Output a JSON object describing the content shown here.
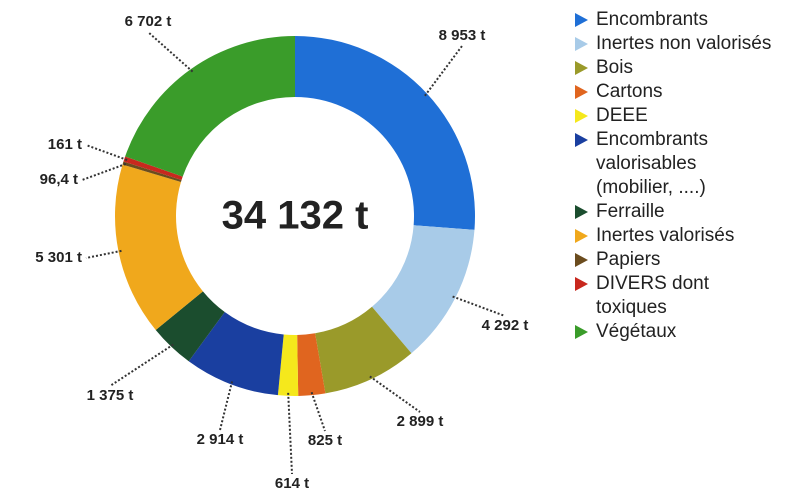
{
  "chart_data": {
    "type": "donut",
    "center_label": "34 132 t",
    "categories": [
      "Encombrants",
      "Inertes non valorisés",
      "Bois",
      "Cartons",
      "DEEE",
      "Encombrants valorisables (mobilier, ....)",
      "Ferraille",
      "Inertes valorisés",
      "Papiers",
      "DIVERS dont toxiques",
      "Végétaux"
    ],
    "values": [
      8953,
      4292,
      2899,
      825,
      614,
      2914,
      1375,
      5301,
      96.4,
      161,
      6702
    ],
    "value_labels": [
      "8 953 t",
      "4 292 t",
      "2 899 t",
      "825 t",
      "614 t",
      "2 914 t",
      "1 375 t",
      "5 301 t",
      "96,4 t",
      "161 t",
      "6 702 t"
    ],
    "colors": [
      "#1f6fd6",
      "#a8cbe8",
      "#9a9a2a",
      "#e0651f",
      "#f5e81c",
      "#1a3fa0",
      "#1b4d2e",
      "#f0a81c",
      "#6b4c1e",
      "#c8281e",
      "#3a9c2a"
    ],
    "legend": "right"
  }
}
